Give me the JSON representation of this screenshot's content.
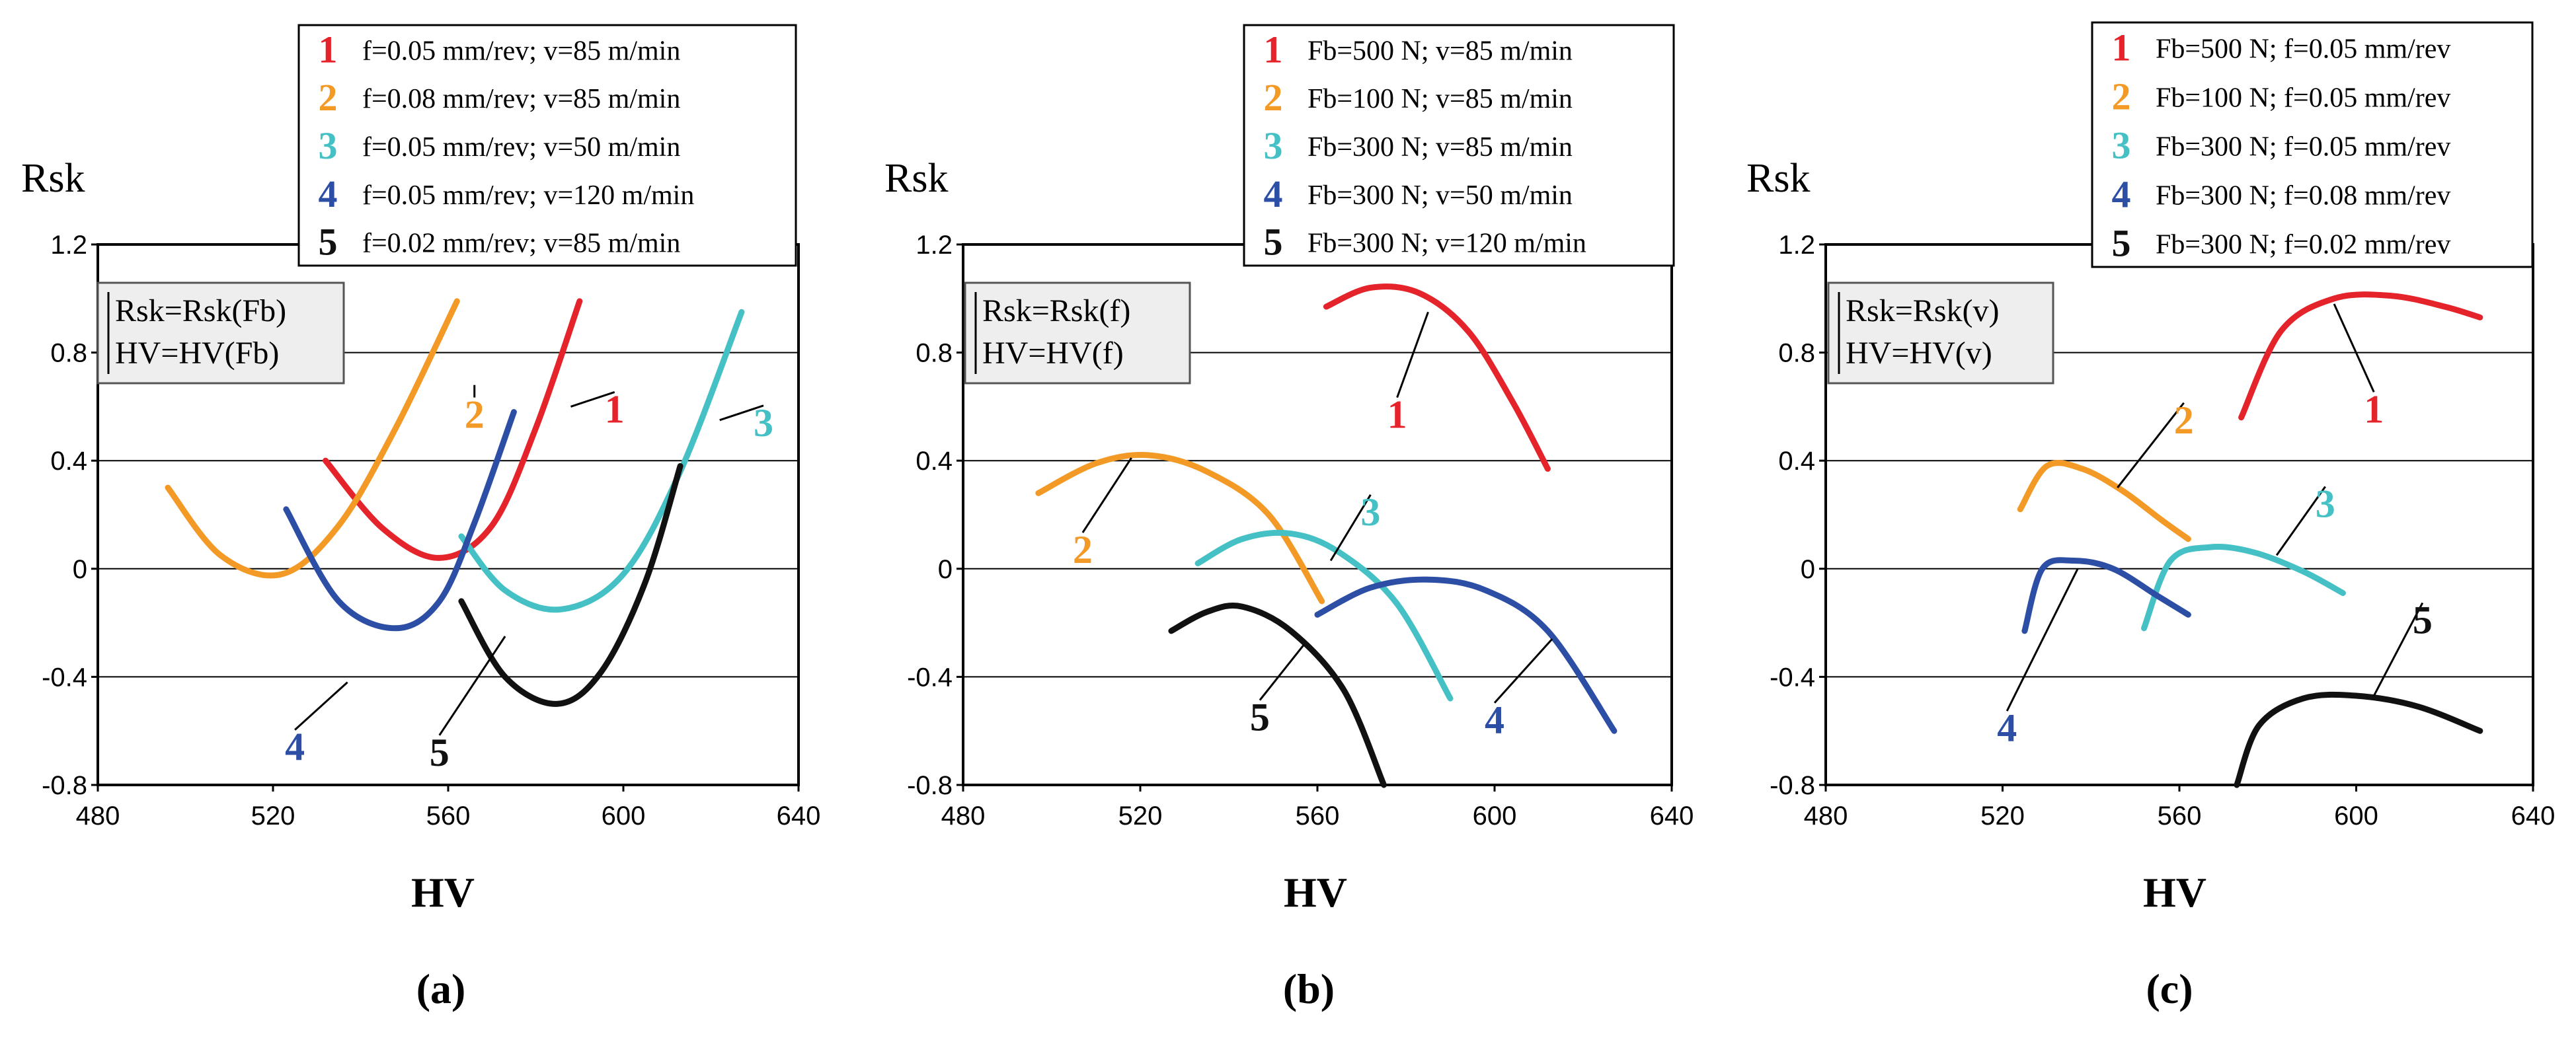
{
  "colors": {
    "1": "#e4232a",
    "2": "#f39a26",
    "3": "#45c1c6",
    "4": "#2c4ea4",
    "5": "#111111"
  },
  "chart_data": [
    {
      "type": "line",
      "panel": "(a)",
      "xlabel": "HV",
      "ylabel": "Rsk",
      "xlim": [
        480,
        640
      ],
      "ylim": [
        -0.8,
        1.2
      ],
      "xticks": [
        "480",
        "520",
        "560",
        "600",
        "640"
      ],
      "yticks": [
        "1.2",
        "0.8",
        "0.4",
        "0",
        "-0.4",
        "-0.8"
      ],
      "grid": "horizontal",
      "legend_position": "top-right",
      "box_lines": [
        "Rsk=Rsk(Fb)",
        "HV=HV(Fb)"
      ],
      "series": [
        {
          "name": "f=0.05 mm/rev; v=85 m/min",
          "num": "1",
          "x": [
            532,
            545,
            558,
            570,
            580,
            590
          ],
          "y": [
            0.4,
            0.15,
            0.04,
            0.16,
            0.52,
            0.99
          ]
        },
        {
          "name": "f=0.08 mm/rev; v=85 m/min",
          "num": "2",
          "x": [
            496,
            508,
            522,
            535,
            548,
            562
          ],
          "y": [
            0.3,
            0.05,
            -0.02,
            0.16,
            0.52,
            0.99
          ]
        },
        {
          "name": "f=0.05 mm/rev; v=50 m/min",
          "num": "3",
          "x": [
            563,
            573,
            586,
            600,
            613,
            627
          ],
          "y": [
            0.12,
            -0.08,
            -0.15,
            -0.02,
            0.36,
            0.95
          ]
        },
        {
          "name": "f=0.05 mm/rev; v=120 m/min",
          "num": "4",
          "x": [
            523,
            535,
            548,
            558,
            566,
            575
          ],
          "y": [
            0.22,
            -0.12,
            -0.22,
            -0.12,
            0.17,
            0.58
          ]
        },
        {
          "name": "f=0.02 mm/rev; v=85 m/min",
          "num": "5",
          "x": [
            563,
            573,
            585,
            595,
            605,
            613
          ],
          "y": [
            -0.12,
            -0.4,
            -0.5,
            -0.38,
            -0.05,
            0.38
          ]
        }
      ],
      "curve_labels": [
        {
          "num": "1",
          "x": 588,
          "y": 0.6,
          "lx": 598,
          "ly": 0.6,
          "at": 580
        },
        {
          "num": "2",
          "x": 566,
          "y": 0.68,
          "lx": 566,
          "ly": 0.58,
          "at": 558
        },
        {
          "num": "3",
          "x": 622,
          "y": 0.55,
          "lx": 632,
          "ly": 0.55,
          "at": 622
        },
        {
          "num": "4",
          "x": 537,
          "y": -0.42,
          "lx": 525,
          "ly": -0.65,
          "at": 540
        },
        {
          "num": "5",
          "x": 573,
          "y": -0.25,
          "lx": 558,
          "ly": -0.67,
          "at": 568
        }
      ]
    },
    {
      "type": "line",
      "panel": "(b)",
      "xlabel": "HV",
      "ylabel": "Rsk",
      "xlim": [
        480,
        640
      ],
      "ylim": [
        -0.8,
        1.2
      ],
      "xticks": [
        "480",
        "520",
        "560",
        "600",
        "640"
      ],
      "yticks": [
        "1.2",
        "0.8",
        "0.4",
        "0",
        "-0.4",
        "-0.8"
      ],
      "grid": "horizontal",
      "legend_position": "top-right",
      "box_lines": [
        "Rsk=Rsk(f)",
        "HV=HV(f)"
      ],
      "series": [
        {
          "name": "Fb=500 N; v=85 m/min",
          "num": "1",
          "x": [
            562,
            572,
            583,
            594,
            604,
            612
          ],
          "y": [
            0.97,
            1.04,
            1.02,
            0.88,
            0.62,
            0.37
          ]
        },
        {
          "name": "Fb=100 N; v=85 m/min",
          "num": "2",
          "x": [
            497,
            510,
            522,
            535,
            549,
            561
          ],
          "y": [
            0.28,
            0.39,
            0.42,
            0.36,
            0.2,
            -0.12
          ]
        },
        {
          "name": "Fb=300 N; v=85 m/min",
          "num": "3",
          "x": [
            533,
            543,
            554,
            565,
            578,
            590
          ],
          "y": [
            0.02,
            0.11,
            0.13,
            0.06,
            -0.13,
            -0.48
          ]
        },
        {
          "name": "Fb=300 N; v=50 m/min",
          "num": "4",
          "x": [
            560,
            572,
            585,
            598,
            612,
            627
          ],
          "y": [
            -0.17,
            -0.07,
            -0.04,
            -0.08,
            -0.23,
            -0.6
          ]
        },
        {
          "name": "Fb=300 N; v=120 m/min",
          "num": "5",
          "x": [
            527,
            535,
            543,
            554,
            566,
            575
          ],
          "y": [
            -0.23,
            -0.16,
            -0.14,
            -0.23,
            -0.45,
            -0.8
          ]
        }
      ],
      "curve_labels": [
        {
          "num": "1",
          "x": 585,
          "y": 0.95,
          "lx": 578,
          "ly": 0.58,
          "at": 585
        },
        {
          "num": "2",
          "x": 518,
          "y": 0.41,
          "lx": 507,
          "ly": 0.08,
          "at": 514
        },
        {
          "num": "3",
          "x": 563,
          "y": 0.03,
          "lx": 572,
          "ly": 0.22,
          "at": 563
        },
        {
          "num": "4",
          "x": 613,
          "y": -0.26,
          "lx": 600,
          "ly": -0.55,
          "at": 613
        },
        {
          "num": "5",
          "x": 557,
          "y": -0.28,
          "lx": 547,
          "ly": -0.54,
          "at": 557
        }
      ]
    },
    {
      "type": "line",
      "panel": "(c)",
      "xlabel": "HV",
      "ylabel": "Rsk",
      "xlim": [
        480,
        640
      ],
      "ylim": [
        -0.8,
        1.2
      ],
      "xticks": [
        "480",
        "520",
        "560",
        "600",
        "640"
      ],
      "yticks": [
        "1.2",
        "0.8",
        "0.4",
        "0",
        "-0.4",
        "-0.8"
      ],
      "grid": "horizontal",
      "legend_position": "top-right",
      "box_lines": [
        "Rsk=Rsk(v)",
        "HV=HV(v)"
      ],
      "series": [
        {
          "name": "Fb=500 N; f=0.05 mm/rev",
          "num": "1",
          "x": [
            574,
            583,
            595,
            608,
            620,
            628
          ],
          "y": [
            0.56,
            0.88,
            1.0,
            1.01,
            0.97,
            0.93
          ]
        },
        {
          "name": "Fb=100 N; f=0.05 mm/rev",
          "num": "2",
          "x": [
            524,
            530,
            538,
            547,
            556,
            562
          ],
          "y": [
            0.22,
            0.38,
            0.37,
            0.29,
            0.18,
            0.11
          ]
        },
        {
          "name": "Fb=300 N; f=0.05 mm/rev",
          "num": "3",
          "x": [
            552,
            558,
            567,
            577,
            588,
            597
          ],
          "y": [
            -0.22,
            0.03,
            0.08,
            0.06,
            -0.01,
            -0.09
          ]
        },
        {
          "name": "Fb=300 N; f=0.08 mm/rev",
          "num": "4",
          "x": [
            525,
            529,
            536,
            545,
            555,
            562
          ],
          "y": [
            -0.23,
            0.0,
            0.03,
            0.0,
            -0.1,
            -0.17
          ]
        },
        {
          "name": "Fb=300 N; f=0.02 mm/rev",
          "num": "5",
          "x": [
            573,
            578,
            588,
            600,
            614,
            628
          ],
          "y": [
            -0.8,
            -0.58,
            -0.48,
            -0.47,
            -0.51,
            -0.6
          ]
        }
      ],
      "curve_labels": [
        {
          "num": "1",
          "x": 595,
          "y": 0.98,
          "lx": 604,
          "ly": 0.6,
          "at": 595
        },
        {
          "num": "2",
          "x": 546,
          "y": 0.3,
          "lx": 561,
          "ly": 0.56,
          "at": 546
        },
        {
          "num": "3",
          "x": 582,
          "y": 0.05,
          "lx": 593,
          "ly": 0.25,
          "at": 582
        },
        {
          "num": "4",
          "x": 537,
          "y": 0.0,
          "lx": 521,
          "ly": -0.58,
          "at": 537
        },
        {
          "num": "5",
          "x": 604,
          "y": -0.47,
          "lx": 615,
          "ly": -0.18,
          "at": 604
        }
      ]
    }
  ]
}
